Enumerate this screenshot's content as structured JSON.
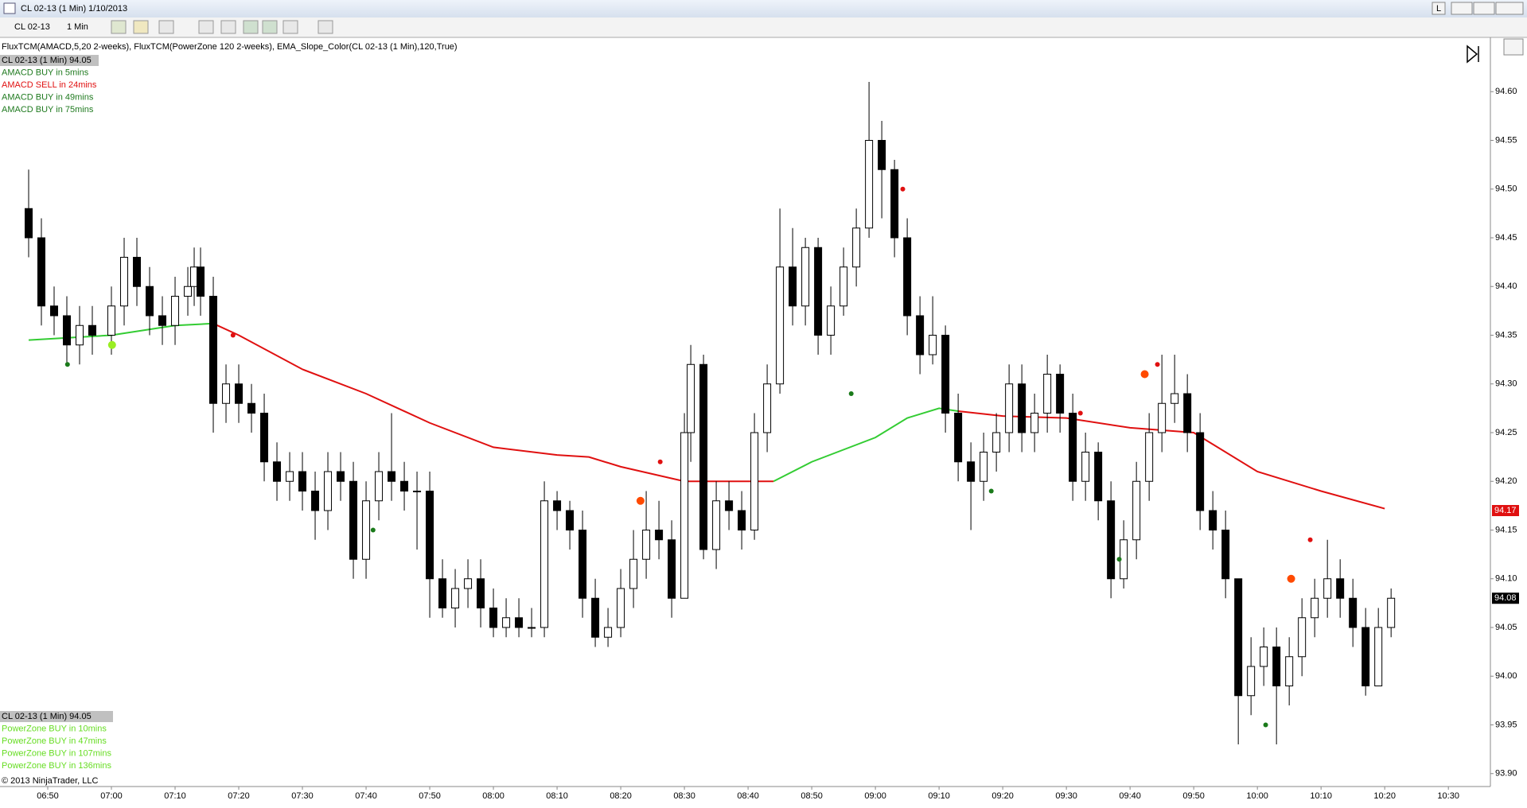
{
  "window": {
    "title": "CL 02-13 (1 Min)  1/10/2013",
    "instrument": "CL 02-13",
    "interval": "1 Min",
    "buttons": [
      "L"
    ]
  },
  "chart_data": {
    "type": "candlestick",
    "indicators": "FluxTCM(AMACD,5,20 2-weeks), FluxTCM(PowerZone 120 2-weeks), EMA_Slope_Color(CL 02-13 (1 Min),120,True)",
    "panels": [
      {
        "header": "CL 02-13 (1 Min) 94.05",
        "lines": [
          {
            "text": "AMACD BUY in 5mins",
            "color": "#1f7a1f"
          },
          {
            "text": "AMACD SELL in 24mins",
            "color": "#e01010"
          },
          {
            "text": "AMACD BUY in 49mins",
            "color": "#1f7a1f"
          },
          {
            "text": "AMACD BUY in 75mins",
            "color": "#1f7a1f"
          }
        ]
      },
      {
        "header": "CL 02-13 (1 Min) 94.05",
        "lines": [
          {
            "text": "PowerZone BUY in 10mins",
            "color": "#66dd22"
          },
          {
            "text": "PowerZone BUY in 47mins",
            "color": "#66dd22"
          },
          {
            "text": "PowerZone BUY in 107mins",
            "color": "#66dd22"
          },
          {
            "text": "PowerZone BUY in 136mins",
            "color": "#66dd22"
          }
        ]
      }
    ],
    "copyright": "© 2013 NinjaTrader, LLC",
    "x": [
      407,
      409,
      411,
      413,
      415,
      417,
      420,
      422,
      424,
      426,
      428,
      430,
      432,
      433,
      434,
      436,
      438,
      440,
      442,
      444,
      446,
      448,
      450,
      452,
      454,
      456,
      458,
      460,
      462,
      464,
      466,
      468,
      470,
      472,
      474,
      476,
      478,
      480,
      482,
      484,
      486,
      488,
      490,
      492,
      494,
      496,
      498,
      500,
      502,
      504,
      506,
      508,
      510,
      511,
      513,
      515,
      517,
      519,
      521,
      523,
      525,
      527,
      529,
      531,
      533,
      535,
      537,
      539,
      541,
      543,
      545,
      547,
      549,
      551,
      553,
      555,
      557,
      559,
      561,
      563,
      565,
      567,
      569,
      571,
      573,
      575,
      577,
      579,
      581,
      583,
      585,
      587,
      589,
      591,
      593,
      595,
      597,
      599,
      601,
      603,
      605,
      607,
      609,
      611,
      613,
      615,
      617,
      619,
      621
    ],
    "open": [
      94.48,
      94.45,
      94.38,
      94.37,
      94.34,
      94.36,
      94.35,
      94.38,
      94.43,
      94.4,
      94.37,
      94.36,
      94.39,
      94.4,
      94.42,
      94.39,
      94.28,
      94.3,
      94.28,
      94.27,
      94.22,
      94.2,
      94.21,
      94.19,
      94.17,
      94.21,
      94.2,
      94.12,
      94.18,
      94.21,
      94.2,
      94.19,
      94.19,
      94.1,
      94.07,
      94.09,
      94.1,
      94.07,
      94.05,
      94.06,
      94.05,
      94.05,
      94.18,
      94.17,
      94.15,
      94.08,
      94.04,
      94.05,
      94.09,
      94.12,
      94.15,
      94.14,
      94.08,
      94.25,
      94.32,
      94.13,
      94.18,
      94.17,
      94.15,
      94.25,
      94.3,
      94.42,
      94.38,
      94.44,
      94.35,
      94.38,
      94.42,
      94.46,
      94.55,
      94.52,
      94.45,
      94.37,
      94.33,
      94.35,
      94.27,
      94.22,
      94.2,
      94.23,
      94.25,
      94.3,
      94.25,
      94.27,
      94.31,
      94.27,
      94.2,
      94.23,
      94.18,
      94.1,
      94.14,
      94.2,
      94.25,
      94.28,
      94.29,
      94.25,
      94.17,
      94.15,
      94.1,
      93.98,
      94.01,
      94.03,
      93.99,
      94.02,
      94.06,
      94.08,
      94.1,
      94.08,
      94.05,
      93.99,
      94.05
    ],
    "high": [
      94.52,
      94.47,
      94.4,
      94.39,
      94.38,
      94.38,
      94.4,
      94.45,
      94.45,
      94.42,
      94.39,
      94.41,
      94.42,
      94.44,
      94.44,
      94.41,
      94.32,
      94.32,
      94.3,
      94.29,
      94.24,
      94.23,
      94.23,
      94.21,
      94.23,
      94.23,
      94.22,
      94.2,
      94.23,
      94.27,
      94.22,
      94.21,
      94.21,
      94.12,
      94.11,
      94.12,
      94.12,
      94.09,
      94.08,
      94.08,
      94.07,
      94.2,
      94.19,
      94.18,
      94.17,
      94.1,
      94.07,
      94.11,
      94.15,
      94.19,
      94.18,
      94.16,
      94.27,
      94.34,
      94.33,
      94.2,
      94.2,
      94.19,
      94.27,
      94.32,
      94.48,
      94.46,
      94.45,
      94.45,
      94.4,
      94.44,
      94.48,
      94.61,
      94.57,
      94.53,
      94.47,
      94.39,
      94.39,
      94.36,
      94.29,
      94.24,
      94.25,
      94.27,
      94.32,
      94.32,
      94.29,
      94.33,
      94.32,
      94.29,
      94.25,
      94.24,
      94.2,
      94.16,
      94.22,
      94.27,
      94.33,
      94.33,
      94.31,
      94.27,
      94.19,
      94.17,
      94.1,
      94.04,
      94.05,
      94.05,
      94.04,
      94.08,
      94.1,
      94.14,
      94.12,
      94.1,
      94.07,
      94.07,
      94.09
    ],
    "low": [
      94.43,
      94.36,
      94.35,
      94.32,
      94.32,
      94.33,
      94.33,
      94.36,
      94.38,
      94.35,
      94.34,
      94.34,
      94.37,
      94.38,
      94.37,
      94.25,
      94.26,
      94.26,
      94.25,
      94.2,
      94.18,
      94.18,
      94.17,
      94.14,
      94.15,
      94.18,
      94.1,
      94.1,
      94.16,
      94.18,
      94.17,
      94.13,
      94.06,
      94.06,
      94.05,
      94.07,
      94.05,
      94.04,
      94.04,
      94.04,
      94.04,
      94.04,
      94.15,
      94.13,
      94.06,
      94.03,
      94.03,
      94.04,
      94.07,
      94.1,
      94.12,
      94.06,
      94.08,
      94.22,
      94.12,
      94.11,
      94.15,
      94.13,
      94.14,
      94.23,
      94.29,
      94.36,
      94.36,
      94.33,
      94.33,
      94.37,
      94.4,
      94.45,
      94.47,
      94.43,
      94.35,
      94.31,
      94.32,
      94.25,
      94.2,
      94.15,
      94.18,
      94.21,
      94.23,
      94.23,
      94.23,
      94.25,
      94.25,
      94.18,
      94.18,
      94.16,
      94.08,
      94.09,
      94.12,
      94.18,
      94.23,
      94.26,
      94.23,
      94.15,
      94.13,
      94.08,
      93.93,
      93.96,
      93.99,
      93.93,
      93.97,
      94,
      94.04,
      94.06,
      94.06,
      94.03,
      93.98,
      93.99,
      94.04
    ],
    "close": [
      94.45,
      94.38,
      94.37,
      94.34,
      94.36,
      94.35,
      94.38,
      94.43,
      94.4,
      94.37,
      94.36,
      94.39,
      94.4,
      94.42,
      94.39,
      94.28,
      94.3,
      94.28,
      94.27,
      94.22,
      94.2,
      94.21,
      94.19,
      94.17,
      94.21,
      94.2,
      94.12,
      94.18,
      94.21,
      94.2,
      94.19,
      94.19,
      94.1,
      94.07,
      94.09,
      94.1,
      94.07,
      94.05,
      94.06,
      94.05,
      94.05,
      94.18,
      94.17,
      94.15,
      94.08,
      94.04,
      94.05,
      94.09,
      94.12,
      94.15,
      94.14,
      94.08,
      94.25,
      94.32,
      94.13,
      94.18,
      94.17,
      94.15,
      94.25,
      94.3,
      94.42,
      94.38,
      94.44,
      94.35,
      94.38,
      94.42,
      94.46,
      94.55,
      94.52,
      94.45,
      94.37,
      94.33,
      94.35,
      94.27,
      94.22,
      94.2,
      94.23,
      94.25,
      94.3,
      94.25,
      94.27,
      94.31,
      94.27,
      94.2,
      94.23,
      94.18,
      94.1,
      94.14,
      94.2,
      94.25,
      94.28,
      94.29,
      94.25,
      94.17,
      94.15,
      94.1,
      93.98,
      94.01,
      94.03,
      93.99,
      94.02,
      94.06,
      94.08,
      94.1,
      94.08,
      94.05,
      93.99,
      94.05,
      94.08
    ],
    "ema": [
      {
        "color": "#33cc33",
        "x": [
          407,
          420,
          430,
          436
        ],
        "values": [
          94.345,
          94.35,
          94.36,
          94.362
        ]
      },
      {
        "color": "#e01010",
        "x": [
          436,
          440,
          450,
          460,
          470,
          480,
          490,
          495,
          500,
          510,
          520,
          524
        ],
        "values": [
          94.362,
          94.35,
          94.315,
          94.29,
          94.26,
          94.235,
          94.227,
          94.225,
          94.215,
          94.2,
          94.2,
          94.2
        ]
      },
      {
        "color": "#33cc33",
        "x": [
          524,
          530,
          540,
          545,
          550,
          553
        ],
        "values": [
          94.2,
          94.22,
          94.245,
          94.265,
          94.275,
          94.272
        ]
      },
      {
        "color": "#e01010",
        "x": [
          553,
          560,
          570,
          580,
          590,
          600,
          610,
          620
        ],
        "values": [
          94.272,
          94.267,
          94.265,
          94.255,
          94.25,
          94.21,
          94.19,
          94.172
        ]
      }
    ],
    "signals": {
      "x": [
        413.1,
        420.1,
        439.1,
        461.1,
        503.1,
        506.2,
        536.2,
        544.3,
        558.2,
        572.2,
        582.3,
        584.3,
        578.3,
        608.3,
        605.3,
        601.3
      ],
      "values": [
        94.32,
        94.34,
        94.35,
        94.15,
        94.18,
        94.22,
        94.29,
        94.5,
        94.19,
        94.27,
        94.31,
        94.32,
        94.12,
        94.14,
        94.1,
        93.95
      ],
      "colors": [
        "#1a7a1a",
        "#99ee22",
        "#e01010",
        "#1a7a1a",
        "#ff4a00",
        "#e01010",
        "#1a7a1a",
        "#e01010",
        "#1a7a1a",
        "#e01010",
        "#ff4a00",
        "#e01010",
        "#1a7a1a",
        "#e01010",
        "#ff4a00",
        "#1a7a1a"
      ]
    },
    "price_markers": [
      {
        "value": 94.17,
        "color": "#e01010"
      },
      {
        "value": 94.08,
        "color": "#000000"
      }
    ],
    "xlim": [
      402.5,
      636.6
    ],
    "ylim": [
      93.89,
      94.65
    ],
    "xticks": [
      {
        "value": 410,
        "label": "06:50"
      },
      {
        "value": 420,
        "label": "07:00"
      },
      {
        "value": 430,
        "label": "07:10"
      },
      {
        "value": 440,
        "label": "07:20"
      },
      {
        "value": 450,
        "label": "07:30"
      },
      {
        "value": 460,
        "label": "07:40"
      },
      {
        "value": 470,
        "label": "07:50"
      },
      {
        "value": 480,
        "label": "08:00"
      },
      {
        "value": 490,
        "label": "08:10"
      },
      {
        "value": 500,
        "label": "08:20"
      },
      {
        "value": 510,
        "label": "08:30"
      },
      {
        "value": 520,
        "label": "08:40"
      },
      {
        "value": 530,
        "label": "08:50"
      },
      {
        "value": 540,
        "label": "09:00"
      },
      {
        "value": 550,
        "label": "09:10"
      },
      {
        "value": 560,
        "label": "09:20"
      },
      {
        "value": 570,
        "label": "09:30"
      },
      {
        "value": 580,
        "label": "09:40"
      },
      {
        "value": 590,
        "label": "09:50"
      },
      {
        "value": 600,
        "label": "10:00"
      },
      {
        "value": 610,
        "label": "10:10"
      },
      {
        "value": 620,
        "label": "10:20"
      },
      {
        "value": 630,
        "label": "10:30"
      }
    ],
    "yticks": [
      {
        "value": 93.9,
        "label": "93.90"
      },
      93.95,
      {
        "value": 94,
        "label": "94.00"
      },
      94.05,
      {
        "value": 94.1,
        "label": "94.10"
      },
      94.15,
      {
        "value": 94.2,
        "label": "94.20"
      },
      94.25,
      {
        "value": 94.3,
        "label": "94.30"
      },
      94.35,
      {
        "value": 94.4,
        "label": "94.40"
      },
      94.45,
      {
        "value": 94.5,
        "label": "94.50"
      },
      94.55,
      {
        "value": 94.6,
        "label": "94.60"
      }
    ]
  }
}
